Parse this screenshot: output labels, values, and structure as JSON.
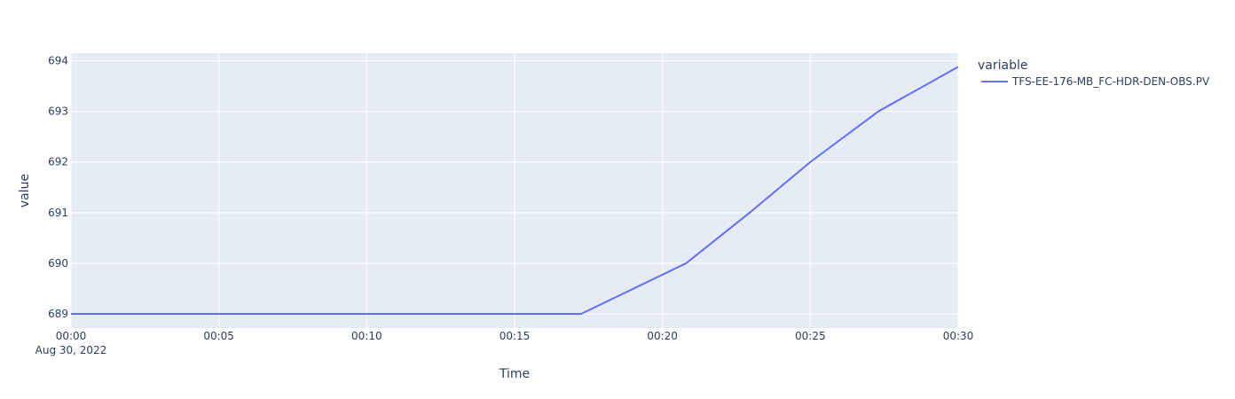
{
  "chart_data": {
    "type": "line",
    "title": "",
    "xlabel": "Time",
    "ylabel": "value",
    "x_date_label": "Aug 30, 2022",
    "x_tick_labels": [
      "00:00",
      "00:05",
      "00:10",
      "00:15",
      "00:20",
      "00:25",
      "00:30"
    ],
    "x_tick_minutes": [
      0,
      5,
      10,
      15,
      20,
      25,
      30
    ],
    "xlim_minutes": [
      0,
      30
    ],
    "y_ticks": [
      689,
      690,
      691,
      692,
      693,
      694
    ],
    "ylim": [
      688.72,
      694.15
    ],
    "grid": true,
    "legend_placement": "top-right",
    "legend_title": "variable",
    "series": [
      {
        "name": "TFS-EE-176-MB_FC-HDR-DEN-OBS.PV",
        "color": "#636efa",
        "x_minutes": [
          0,
          17.25,
          20.8,
          22.95,
          25.0,
          27.3,
          30.0
        ],
        "values": [
          689,
          689,
          690,
          691,
          692,
          693,
          693.88
        ]
      }
    ]
  }
}
